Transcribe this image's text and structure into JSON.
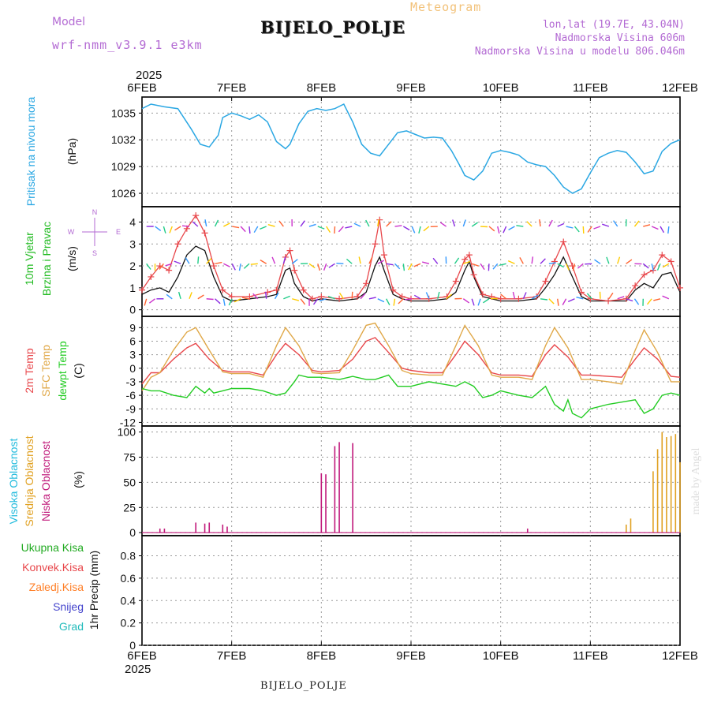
{
  "header": {
    "model_label": "Model",
    "model_name": "wrf-nmm_v3.9.1 e3km",
    "station": "BIJELO_POLJE",
    "meteogram_label": "Meteogram",
    "lonlat": "lon,lat (19.7E, 43.04N)",
    "elevation": "Nadmorska Visina 606m",
    "elevation_model": "Nadmorska Visina u modelu 806.046m"
  },
  "footer": {
    "station": "BIJELO_POLJE"
  },
  "credit": "made by Angel",
  "colors": {
    "pressure": "#2aa7e3",
    "wind_speed": "#111111",
    "wind_gust": "#e8474b",
    "temp_2m": "#e8474b",
    "temp_sfc": "#e0a848",
    "dewpoint": "#22cc22",
    "cloud_high": "#22bbdd",
    "cloud_mid": "#e0a020",
    "cloud_low": "#c0187a",
    "precip_total": "#22aa22",
    "precip_conv": "#e8474b",
    "precip_frozen": "#ff7f27",
    "precip_snow": "#4444cc",
    "precip_hail": "#22bbbb",
    "wind_labels": "#22bb22",
    "compass": "#b36ad3"
  },
  "chart_data": [
    {
      "type": "line",
      "id": "pressure",
      "series_name": "Pritisak na nivou mora",
      "ylabel_lines": [
        "Pritisak na nivou mora"
      ],
      "unit": "(hPa)",
      "ylim": [
        1024.5,
        1036.8
      ],
      "yticks": [
        1026,
        1029,
        1032,
        1035
      ],
      "x": [
        0,
        0.1,
        0.25,
        0.4,
        0.55,
        0.65,
        0.75,
        0.85,
        0.9,
        1.0,
        1.1,
        1.2,
        1.3,
        1.4,
        1.5,
        1.6,
        1.65,
        1.75,
        1.85,
        1.95,
        2.05,
        2.15,
        2.25,
        2.35,
        2.45,
        2.55,
        2.65,
        2.75,
        2.85,
        2.95,
        3.05,
        3.15,
        3.25,
        3.35,
        3.45,
        3.55,
        3.6,
        3.7,
        3.8,
        3.9,
        4.0,
        4.1,
        4.2,
        4.3,
        4.4,
        4.5,
        4.6,
        4.7,
        4.8,
        4.9,
        5.0,
        5.1,
        5.2,
        5.3,
        5.4,
        5.5,
        5.6,
        5.7,
        5.8,
        5.9,
        6.0
      ],
      "values": [
        1035.5,
        1036.0,
        1035.7,
        1035.5,
        1033.2,
        1031.5,
        1031.2,
        1032.5,
        1034.5,
        1035.0,
        1034.7,
        1034.3,
        1034.8,
        1034.0,
        1031.8,
        1031.0,
        1031.5,
        1033.8,
        1035.2,
        1035.5,
        1035.3,
        1035.5,
        1036.0,
        1034.0,
        1031.5,
        1030.5,
        1030.2,
        1031.5,
        1032.8,
        1033.0,
        1032.6,
        1032.2,
        1032.3,
        1032.2,
        1030.8,
        1029.0,
        1028.0,
        1027.5,
        1028.5,
        1030.5,
        1030.8,
        1030.6,
        1030.3,
        1029.5,
        1029.2,
        1029.0,
        1028.0,
        1026.7,
        1026.0,
        1026.5,
        1028.3,
        1030.0,
        1030.5,
        1030.8,
        1030.6,
        1029.5,
        1028.2,
        1028.5,
        1030.7,
        1031.6,
        1032.0
      ]
    },
    {
      "type": "line",
      "id": "wind",
      "ylabel_lines": [
        "10m Vjetar",
        "Brzina i Pravac"
      ],
      "unit": "(m/s)",
      "compass": [
        "N",
        "E",
        "S",
        "W"
      ],
      "ylim": [
        -0.3,
        4.7
      ],
      "yticks": [
        0,
        1,
        2,
        3,
        4
      ],
      "series": [
        {
          "name": "brzina",
          "x": [
            0,
            0.1,
            0.2,
            0.3,
            0.4,
            0.5,
            0.6,
            0.7,
            0.8,
            0.9,
            1.0,
            1.2,
            1.4,
            1.5,
            1.6,
            1.65,
            1.7,
            1.8,
            1.9,
            2.0,
            2.2,
            2.4,
            2.5,
            2.6,
            2.65,
            2.7,
            2.8,
            2.9,
            3.0,
            3.2,
            3.4,
            3.5,
            3.6,
            3.65,
            3.7,
            3.8,
            3.9,
            4.0,
            4.2,
            4.4,
            4.5,
            4.6,
            4.7,
            4.8,
            4.9,
            5.0,
            5.2,
            5.4,
            5.5,
            5.6,
            5.7,
            5.8,
            5.9,
            6.0
          ],
          "values": [
            0.7,
            0.9,
            1.0,
            0.8,
            1.5,
            2.5,
            2.9,
            2.7,
            1.5,
            0.6,
            0.4,
            0.5,
            0.6,
            0.7,
            1.8,
            1.9,
            1.2,
            0.6,
            0.4,
            0.5,
            0.4,
            0.5,
            0.8,
            2.0,
            2.4,
            1.8,
            0.7,
            0.5,
            0.4,
            0.4,
            0.5,
            0.8,
            1.8,
            2.2,
            1.5,
            0.6,
            0.5,
            0.4,
            0.4,
            0.5,
            1.0,
            1.6,
            2.4,
            1.5,
            0.6,
            0.4,
            0.4,
            0.4,
            0.9,
            1.2,
            1.0,
            1.6,
            1.7,
            0.8
          ]
        },
        {
          "name": "udari",
          "x": [
            0,
            0.1,
            0.2,
            0.3,
            0.4,
            0.5,
            0.6,
            0.7,
            0.8,
            0.9,
            1.0,
            1.2,
            1.4,
            1.5,
            1.6,
            1.65,
            1.7,
            1.8,
            1.9,
            2.0,
            2.2,
            2.4,
            2.5,
            2.6,
            2.65,
            2.7,
            2.8,
            2.9,
            3.0,
            3.2,
            3.4,
            3.5,
            3.6,
            3.65,
            3.7,
            3.8,
            3.9,
            4.0,
            4.2,
            4.4,
            4.5,
            4.6,
            4.7,
            4.8,
            4.9,
            5.0,
            5.2,
            5.4,
            5.5,
            5.6,
            5.7,
            5.8,
            5.9,
            6.0
          ],
          "values": [
            0.9,
            1.5,
            2.0,
            1.8,
            3.0,
            3.7,
            4.3,
            3.5,
            2.0,
            0.9,
            0.6,
            0.6,
            0.8,
            0.9,
            2.4,
            2.7,
            1.8,
            0.9,
            0.5,
            0.6,
            0.5,
            0.6,
            1.2,
            3.0,
            4.1,
            2.5,
            0.9,
            0.6,
            0.5,
            0.5,
            0.6,
            1.3,
            2.3,
            2.5,
            1.6,
            0.7,
            0.6,
            0.5,
            0.5,
            0.6,
            1.3,
            2.2,
            3.1,
            2.0,
            0.8,
            0.5,
            0.4,
            0.5,
            1.1,
            1.6,
            1.8,
            2.5,
            2.2,
            1.0
          ]
        }
      ]
    },
    {
      "type": "line",
      "id": "temperature",
      "ylabel_lines": [
        "2m Temp",
        "SFC Temp",
        "dewpt Temp"
      ],
      "unit": "(C)",
      "ylim": [
        -12.8,
        11.5
      ],
      "yticks": [
        -12,
        -9,
        -6,
        -3,
        0,
        3,
        6,
        9
      ],
      "series": [
        {
          "name": "2m Temp",
          "x": [
            0,
            0.1,
            0.2,
            0.35,
            0.5,
            0.6,
            0.75,
            0.9,
            1.0,
            1.2,
            1.35,
            1.5,
            1.6,
            1.75,
            1.9,
            2.0,
            2.2,
            2.35,
            2.5,
            2.6,
            2.75,
            2.9,
            3.0,
            3.2,
            3.35,
            3.5,
            3.6,
            3.75,
            3.9,
            4.0,
            4.2,
            4.35,
            4.5,
            4.6,
            4.75,
            4.9,
            5.0,
            5.2,
            5.35,
            5.5,
            5.6,
            5.75,
            5.9,
            6.0
          ],
          "values": [
            -3.5,
            -1.0,
            -1.0,
            2.0,
            4.5,
            5.5,
            2.0,
            -0.5,
            -0.8,
            -0.8,
            -1.5,
            3.0,
            5.5,
            3.0,
            -0.5,
            -0.8,
            -0.5,
            2.0,
            6.0,
            6.8,
            3.5,
            0.0,
            -0.5,
            -1.0,
            -1.0,
            3.0,
            6.0,
            3.0,
            -1.0,
            -1.5,
            -1.5,
            -1.8,
            3.0,
            5.2,
            2.5,
            -1.5,
            -1.5,
            -1.8,
            -2.0,
            2.0,
            4.5,
            2.0,
            -1.8,
            -2.0
          ]
        },
        {
          "name": "SFC Temp",
          "x": [
            0,
            0.1,
            0.2,
            0.35,
            0.5,
            0.6,
            0.75,
            0.9,
            1.0,
            1.2,
            1.35,
            1.5,
            1.6,
            1.75,
            1.9,
            2.0,
            2.2,
            2.35,
            2.5,
            2.6,
            2.75,
            2.9,
            3.0,
            3.2,
            3.35,
            3.5,
            3.6,
            3.75,
            3.9,
            4.0,
            4.2,
            4.35,
            4.5,
            4.6,
            4.75,
            4.9,
            5.0,
            5.2,
            5.35,
            5.5,
            5.6,
            5.75,
            5.9,
            6.0
          ],
          "values": [
            -5.0,
            -2.0,
            -1.0,
            4.0,
            8.0,
            9.0,
            4.0,
            -0.8,
            -1.2,
            -1.2,
            -2.0,
            5.0,
            9.0,
            5.0,
            -1.0,
            -1.2,
            -1.0,
            4.0,
            9.5,
            10.0,
            5.0,
            -0.5,
            -1.2,
            -1.5,
            -1.5,
            5.0,
            9.5,
            5.0,
            -1.5,
            -2.0,
            -2.0,
            -2.5,
            5.0,
            9.0,
            4.5,
            -2.5,
            -2.5,
            -3.0,
            -3.5,
            4.0,
            8.5,
            3.5,
            -3.0,
            -3.0
          ]
        },
        {
          "name": "dewpt Temp",
          "x": [
            0,
            0.1,
            0.2,
            0.35,
            0.5,
            0.6,
            0.7,
            0.75,
            0.8,
            0.9,
            1.0,
            1.2,
            1.35,
            1.5,
            1.6,
            1.7,
            1.75,
            1.85,
            2.0,
            2.2,
            2.35,
            2.5,
            2.6,
            2.75,
            2.85,
            3.0,
            3.2,
            3.35,
            3.5,
            3.6,
            3.7,
            3.8,
            3.9,
            4.0,
            4.2,
            4.35,
            4.5,
            4.6,
            4.7,
            4.75,
            4.8,
            4.9,
            5.0,
            5.2,
            5.35,
            5.5,
            5.6,
            5.7,
            5.8,
            5.9,
            6.0
          ],
          "values": [
            -4.5,
            -5.0,
            -5.0,
            -6.0,
            -6.5,
            -4.0,
            -5.5,
            -4.5,
            -5.5,
            -5.0,
            -4.5,
            -4.5,
            -5.0,
            -6.0,
            -5.5,
            -3.0,
            -1.5,
            -2.0,
            -2.0,
            -2.5,
            -1.8,
            -2.5,
            -2.5,
            -1.5,
            -4.0,
            -4.0,
            -3.0,
            -3.5,
            -4.0,
            -3.0,
            -4.0,
            -6.5,
            -6.0,
            -5.0,
            -6.0,
            -6.5,
            -4.0,
            -8.0,
            -9.5,
            -7.0,
            -10.0,
            -11.0,
            -9.0,
            -8.0,
            -7.5,
            -7.0,
            -10.0,
            -9.0,
            -6.0,
            -5.5,
            -6.0
          ]
        }
      ]
    },
    {
      "type": "bar",
      "id": "cloud",
      "ylabel_lines": [
        "Visoka Oblacnost",
        "Srednja Oblacnost",
        "Niska Oblacnost"
      ],
      "unit": "(%)",
      "ylim": [
        -3,
        106
      ],
      "yticks": [
        0,
        25,
        50,
        75,
        100
      ],
      "series": [
        {
          "name": "Niska Oblacnost",
          "x": [
            0.2,
            0.25,
            0.6,
            0.7,
            0.75,
            0.9,
            0.95,
            2.0,
            2.05,
            2.15,
            2.2,
            2.35,
            4.3
          ],
          "values": [
            4,
            4,
            10,
            9,
            10,
            8,
            6,
            59,
            58,
            86,
            90,
            89,
            4
          ]
        },
        {
          "name": "Srednja Oblacnost",
          "x": [
            5.4,
            5.45,
            5.7,
            5.75,
            5.8,
            5.85,
            5.9,
            5.95,
            6.0
          ],
          "values": [
            8,
            14,
            61,
            83,
            100,
            95,
            96,
            98,
            70
          ]
        }
      ]
    },
    {
      "type": "bar",
      "id": "precip",
      "ylabel_lines": [
        "1hr Precip (mm)"
      ],
      "legend": [
        "Ukupna Kisa",
        "Konvek.Kisa",
        "Zaledj.Kisa",
        "Snijeg",
        "Grad"
      ],
      "ylim": [
        0,
        0.98
      ],
      "yticks": [
        0,
        0.2,
        0.4,
        0.6,
        0.8
      ],
      "ytick_labels": [
        "0",
        "0.2",
        "0.4",
        "0.6",
        "0.8"
      ],
      "series": [],
      "xlim": [
        0,
        6
      ],
      "x_top_labels": [
        "6FEB",
        "7FEB",
        "8FEB",
        "9FEB",
        "10FEB",
        "11FEB",
        "12FEB"
      ],
      "x_bottom_labels": [
        "6FEB",
        "7FEB",
        "8FEB",
        "9FEB",
        "10FEB",
        "11FEB",
        "12FEB"
      ],
      "year_label": "2025"
    }
  ]
}
